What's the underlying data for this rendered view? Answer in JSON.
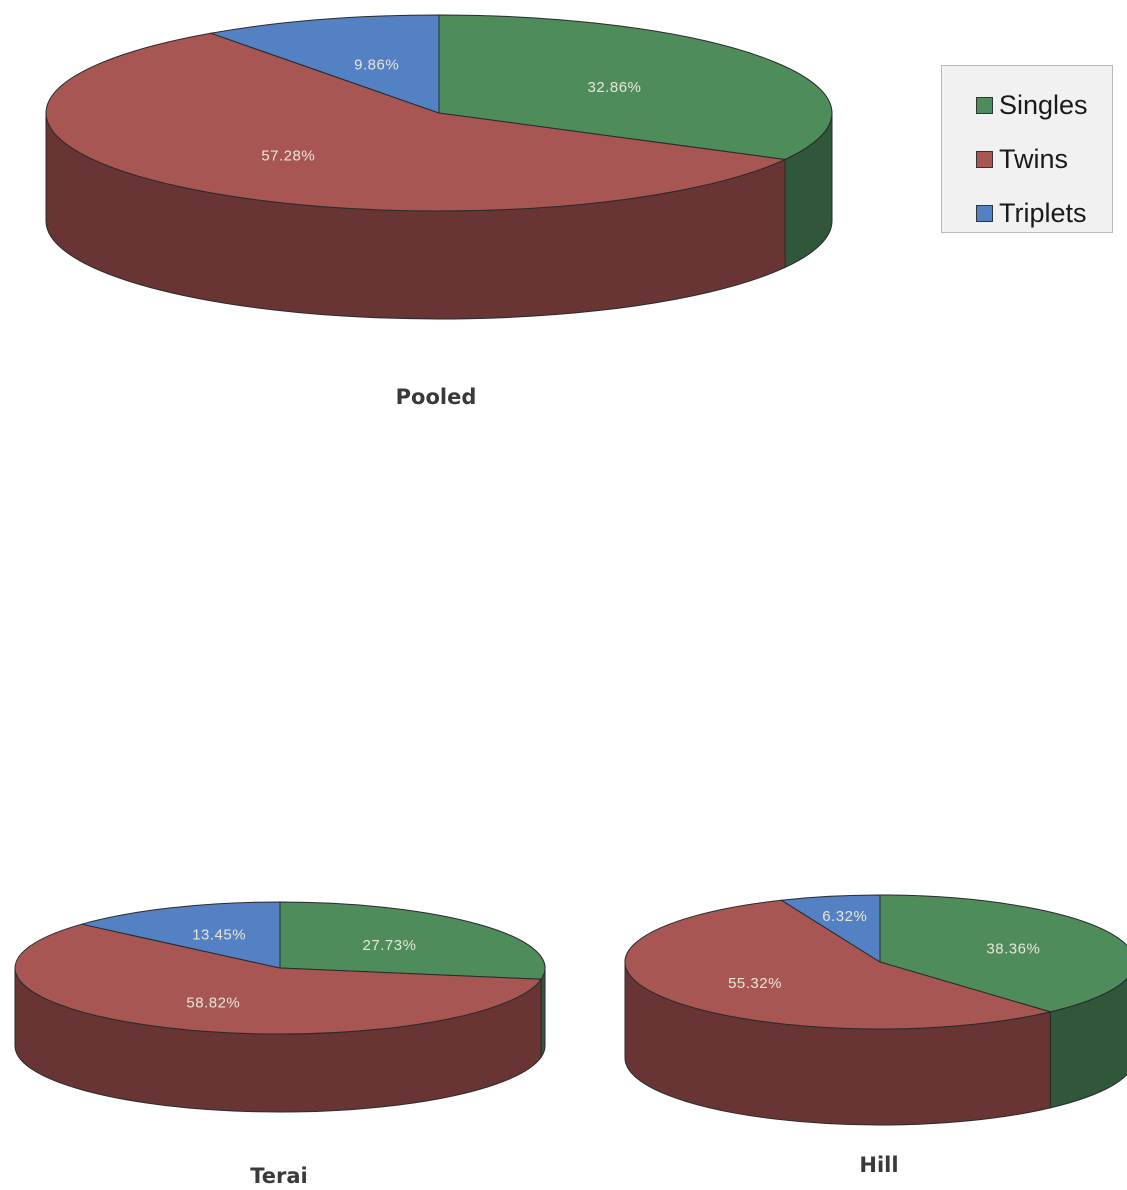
{
  "colors": {
    "Singles": "#4e8c5c",
    "Twins": "#a75654",
    "Triplets": "#5381c4"
  },
  "legend": [
    {
      "name": "Singles",
      "icon": "legend-swatch-singles"
    },
    {
      "name": "Twins",
      "icon": "legend-swatch-twins"
    },
    {
      "name": "Triplets",
      "icon": "legend-swatch-triplets"
    }
  ],
  "chart_data": [
    {
      "type": "pie",
      "title": "Pooled",
      "categories": [
        "Singles",
        "Twins",
        "Triplets"
      ],
      "values": [
        32.86,
        57.28,
        9.86
      ],
      "labels": [
        "32.86%",
        "57.28%",
        "9.86%"
      ],
      "legend_position": "right"
    },
    {
      "type": "pie",
      "title": "Terai",
      "categories": [
        "Singles",
        "Twins",
        "Triplets"
      ],
      "values": [
        27.73,
        58.82,
        13.45
      ],
      "labels": [
        "27.73%",
        "58.82%",
        "13.45%"
      ]
    },
    {
      "type": "pie",
      "title": "Hill",
      "categories": [
        "Singles",
        "Twins",
        "Triplets"
      ],
      "values": [
        38.36,
        55.32,
        6.32
      ],
      "labels": [
        "38.36%",
        "55.32%",
        "6.32%"
      ]
    }
  ]
}
